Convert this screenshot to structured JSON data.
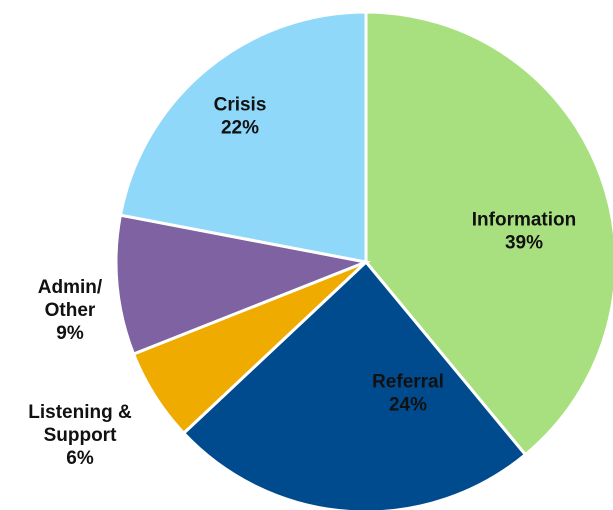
{
  "chart_data": {
    "type": "pie",
    "categories": [
      [
        "Information"
      ],
      [
        "Referral"
      ],
      [
        "Listening &",
        "Support"
      ],
      [
        "Admin/",
        "Other"
      ],
      [
        "Crisis"
      ]
    ],
    "values": [
      39,
      24,
      6,
      9,
      22
    ],
    "value_labels": [
      "39%",
      "24%",
      "6%",
      "9%",
      "22%"
    ],
    "colors": [
      "#a9e07f",
      "#004b8d",
      "#f0ab00",
      "#7e62a1",
      "#8fd8f9"
    ]
  }
}
